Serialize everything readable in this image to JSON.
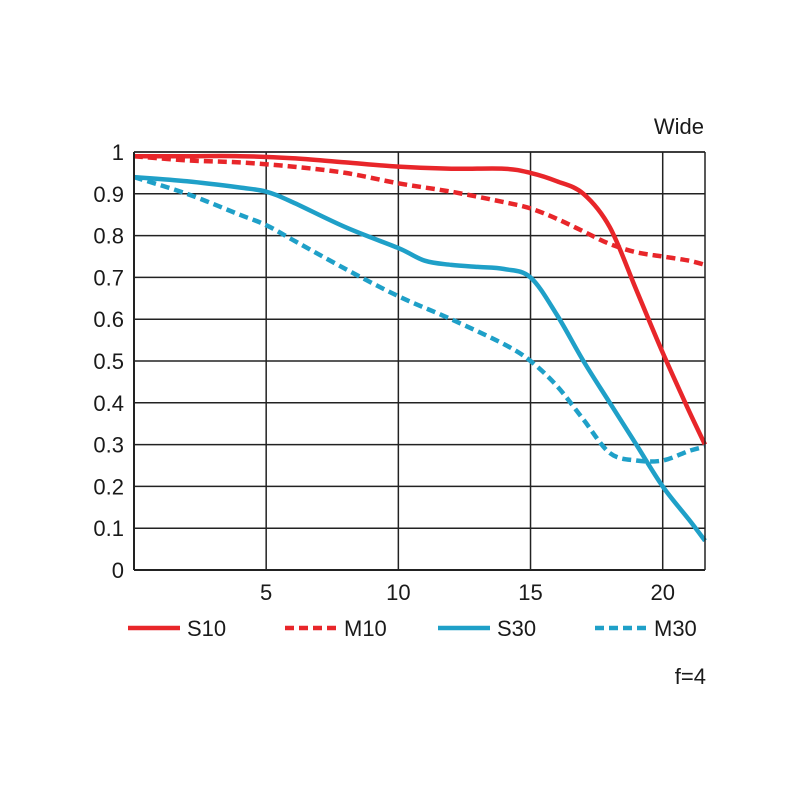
{
  "chart_data": {
    "type": "line",
    "title": "Wide",
    "footnote": "f=4",
    "xlabel": "",
    "ylabel": "",
    "xlim": [
      0,
      21.6
    ],
    "ylim": [
      0,
      1
    ],
    "xticks": [
      5,
      10,
      15,
      20
    ],
    "xtick_labels": [
      "5",
      "10",
      "15",
      "20"
    ],
    "yticks": [
      0,
      0.1,
      0.2,
      0.3,
      0.4,
      0.5,
      0.6,
      0.7,
      0.8,
      0.9,
      1
    ],
    "ytick_labels": [
      "0",
      "0.1",
      "0.2",
      "0.3",
      "0.4",
      "0.5",
      "0.6",
      "0.7",
      "0.8",
      "0.9",
      "1"
    ],
    "grid": true,
    "legend_position": "bottom",
    "series": [
      {
        "name": "S10",
        "color": "#e8262a",
        "dashed": false,
        "x": [
          0,
          2,
          4,
          6,
          8,
          10,
          12,
          14,
          15,
          16,
          17,
          18,
          19,
          20,
          21,
          21.6
        ],
        "y": [
          0.99,
          0.99,
          0.99,
          0.985,
          0.975,
          0.965,
          0.96,
          0.96,
          0.95,
          0.93,
          0.9,
          0.82,
          0.67,
          0.52,
          0.38,
          0.3
        ]
      },
      {
        "name": "M10",
        "color": "#e8262a",
        "dashed": true,
        "x": [
          0,
          2,
          4,
          6,
          8,
          10,
          12,
          14,
          15,
          16,
          17,
          18,
          19,
          20,
          21,
          21.6
        ],
        "y": [
          0.99,
          0.98,
          0.975,
          0.965,
          0.95,
          0.925,
          0.905,
          0.88,
          0.865,
          0.84,
          0.81,
          0.78,
          0.76,
          0.75,
          0.74,
          0.73
        ]
      },
      {
        "name": "S30",
        "color": "#1fa0c8",
        "dashed": false,
        "x": [
          0,
          2,
          4,
          5,
          6,
          8,
          10,
          11,
          12,
          13,
          14,
          15,
          16,
          17,
          18,
          19,
          20,
          21,
          21.6
        ],
        "y": [
          0.94,
          0.93,
          0.915,
          0.905,
          0.88,
          0.82,
          0.77,
          0.74,
          0.73,
          0.725,
          0.72,
          0.7,
          0.61,
          0.5,
          0.4,
          0.3,
          0.2,
          0.12,
          0.07
        ]
      },
      {
        "name": "M30",
        "color": "#1fa0c8",
        "dashed": true,
        "x": [
          0,
          2,
          4,
          5,
          6,
          8,
          10,
          12,
          14,
          15,
          16,
          17,
          18,
          19,
          20,
          21,
          21.6
        ],
        "y": [
          0.94,
          0.9,
          0.85,
          0.825,
          0.79,
          0.72,
          0.655,
          0.6,
          0.54,
          0.5,
          0.44,
          0.36,
          0.28,
          0.262,
          0.262,
          0.285,
          0.295
        ]
      }
    ]
  }
}
